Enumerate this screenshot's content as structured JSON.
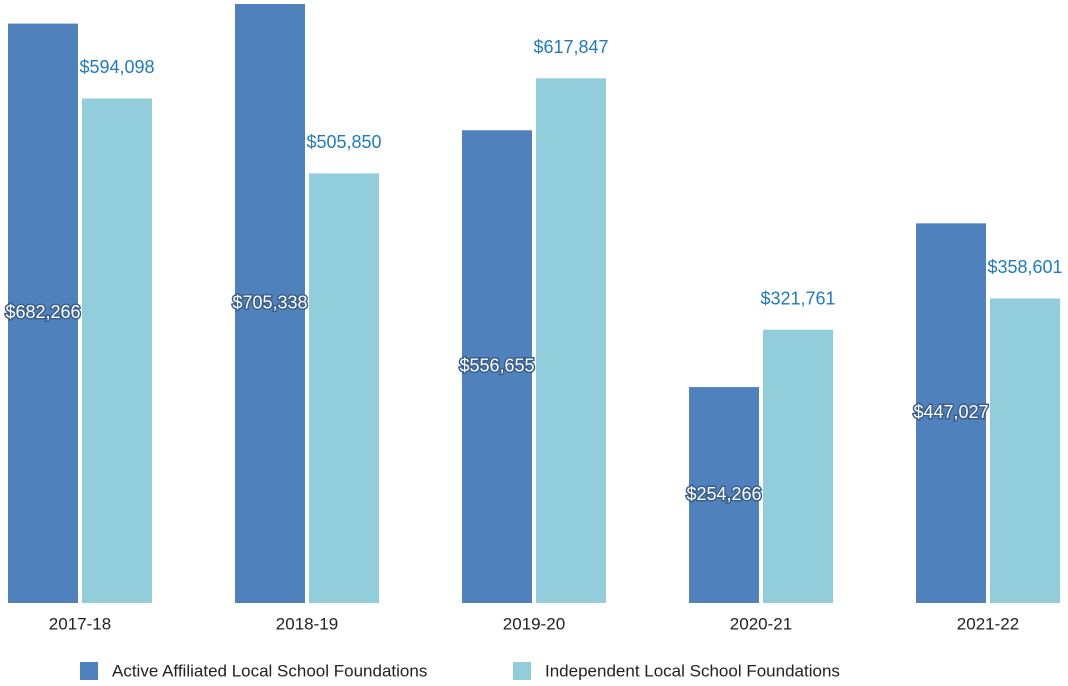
{
  "chart_data": {
    "type": "bar",
    "categories": [
      "2017-18",
      "2018-19",
      "2019-20",
      "2020-21",
      "2021-22"
    ],
    "series": [
      {
        "name": "Active Affiliated Local School Foundations",
        "color": "#4f81bd",
        "values": [
          682266,
          705338,
          556655,
          254266,
          447027
        ],
        "value_labels": [
          "$682,266",
          "$705,338",
          "$556,655",
          "$254,266",
          "$447,027"
        ]
      },
      {
        "name": "Independent Local School Foundations",
        "color": "#92cddc",
        "values": [
          594098,
          505850,
          617847,
          321761,
          358601
        ],
        "value_labels": [
          "$594,098",
          "$505,850",
          "$617,847",
          "$321,761",
          "$358,601"
        ]
      }
    ]
  }
}
